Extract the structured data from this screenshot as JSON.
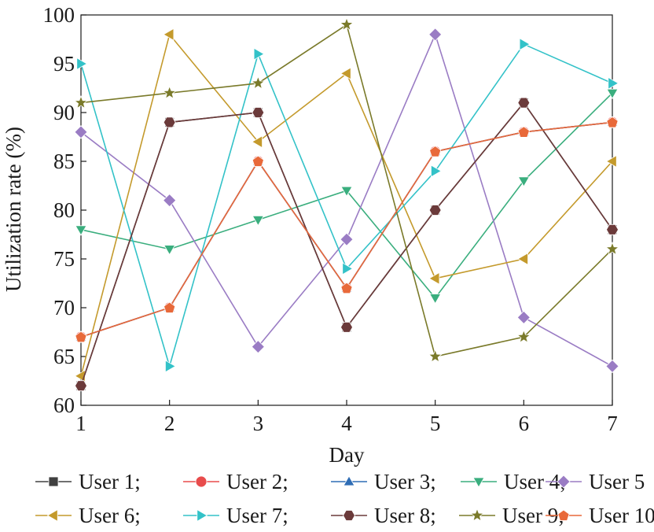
{
  "chart_data": {
    "type": "line",
    "title": "",
    "xlabel": "Day",
    "ylabel": "Utilization rate (%)",
    "x": [
      1,
      2,
      3,
      4,
      5,
      6,
      7
    ],
    "xlim": [
      1,
      7
    ],
    "ylim": [
      60,
      100
    ],
    "xticks": [
      1,
      2,
      3,
      4,
      5,
      6,
      7
    ],
    "yticks": [
      60,
      65,
      70,
      75,
      80,
      85,
      90,
      95,
      100
    ],
    "grid": false,
    "legend_placement": "bottom",
    "series": [
      {
        "name": "User 1;",
        "legend_label": "User 1;",
        "marker": "square",
        "color": "#404040",
        "values": [
          62,
          89,
          90,
          68,
          80,
          91,
          78
        ]
      },
      {
        "name": "User 2;",
        "legend_label": "User 2;",
        "marker": "circle",
        "color": "#e84c4c",
        "values": [
          67,
          70,
          85,
          72,
          86,
          88,
          89
        ]
      },
      {
        "name": "User 3;",
        "legend_label": "User 3;",
        "marker": "triangle-up",
        "color": "#2f6db5",
        "values": [
          67,
          70,
          85,
          72,
          86,
          88,
          89
        ]
      },
      {
        "name": "User 4;",
        "legend_label": "User 4;",
        "marker": "triangle-down",
        "color": "#3aae7e",
        "values": [
          78,
          76,
          79,
          82,
          71,
          83,
          92
        ]
      },
      {
        "name": "User 5",
        "legend_label": "User 5",
        "marker": "diamond",
        "color": "#9a7cc4",
        "values": [
          88,
          81,
          66,
          77,
          98,
          69,
          64
        ]
      },
      {
        "name": "User 6;",
        "legend_label": "User 6;",
        "marker": "triangle-left",
        "color": "#c49a2c",
        "values": [
          63,
          98,
          87,
          94,
          73,
          75,
          85
        ]
      },
      {
        "name": "User 7;",
        "legend_label": "User 7;",
        "marker": "triangle-right",
        "color": "#33c2c8",
        "values": [
          95,
          64,
          96,
          74,
          84,
          97,
          93
        ]
      },
      {
        "name": "User 8;",
        "legend_label": "User 8;",
        "marker": "hexagon",
        "color": "#6b3a3a",
        "values": [
          62,
          89,
          90,
          68,
          80,
          91,
          78
        ]
      },
      {
        "name": "User 9;",
        "legend_label": "User 9;",
        "marker": "star",
        "color": "#7a7a2a",
        "values": [
          91,
          92,
          93,
          99,
          65,
          67,
          76
        ]
      },
      {
        "name": "User 10",
        "legend_label": "User 10",
        "marker": "pentagon",
        "color": "#e8693a",
        "values": [
          67,
          70,
          85,
          72,
          86,
          88,
          89
        ]
      }
    ]
  }
}
